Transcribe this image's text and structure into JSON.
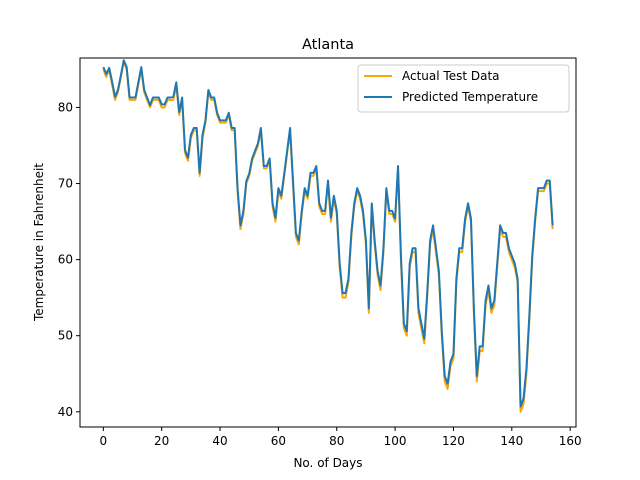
{
  "chart_data": {
    "type": "line",
    "title": "Atlanta",
    "xlabel": "No. of Days",
    "ylabel": "Temperature in Fahrenheit",
    "xlim": [
      -8,
      162
    ],
    "ylim": [
      38,
      86.5
    ],
    "xticks": [
      0,
      20,
      40,
      60,
      80,
      100,
      120,
      140,
      160
    ],
    "yticks": [
      40,
      50,
      60,
      70,
      80
    ],
    "grid": false,
    "legend": "top-right",
    "series": [
      {
        "name": "Actual Test Data",
        "color": "#ffa500",
        "values": [
          85,
          84,
          85,
          83,
          81,
          82,
          84,
          86,
          85,
          81,
          81,
          81,
          83,
          85,
          82,
          81,
          80,
          81,
          81,
          81,
          80,
          80,
          81,
          81,
          81,
          83,
          79,
          81,
          74,
          73,
          76,
          77,
          77,
          71,
          76,
          78,
          82,
          81,
          81,
          79,
          78,
          78,
          78,
          79,
          77,
          77,
          69,
          64,
          66,
          70,
          71,
          73,
          74,
          75,
          77,
          72,
          72,
          73,
          67,
          65,
          69,
          68,
          71,
          74,
          77,
          70,
          63,
          62,
          66,
          69,
          68,
          71,
          71,
          72,
          67,
          66,
          66,
          70,
          65,
          68,
          66,
          59,
          55,
          55,
          57,
          63,
          67,
          69,
          68,
          66,
          62,
          53,
          67,
          62,
          58,
          56,
          61,
          69,
          66,
          66,
          65,
          72,
          60,
          51,
          50,
          59,
          61,
          61,
          53,
          51,
          49,
          55,
          62,
          64,
          61,
          58,
          50,
          44,
          43,
          46,
          47,
          57,
          61,
          61,
          65,
          67,
          65,
          53,
          44,
          48,
          48,
          54,
          56,
          53,
          54,
          59,
          64,
          63,
          63,
          61,
          60,
          59,
          57,
          40,
          41,
          45,
          52,
          60,
          65,
          69,
          69,
          69,
          70,
          70,
          64
        ]
      },
      {
        "name": "Predicted Temperature",
        "color": "#1f77b4",
        "values": [
          85.3,
          84.4,
          85.2,
          83.4,
          81.4,
          82.3,
          84.2,
          86.2,
          85.3,
          81.3,
          81.3,
          81.3,
          83.3,
          85.3,
          82.3,
          81.3,
          80.3,
          81.3,
          81.3,
          81.3,
          80.4,
          80.4,
          81.3,
          81.3,
          81.4,
          83.3,
          79.4,
          81.3,
          74.4,
          73.4,
          76.4,
          77.3,
          77.3,
          71.4,
          76.4,
          78.3,
          82.3,
          81.3,
          81.3,
          79.3,
          78.3,
          78.3,
          78.3,
          79.3,
          77.3,
          77.3,
          69.4,
          64.5,
          66.4,
          70.3,
          71.3,
          73.3,
          74.3,
          75.3,
          77.3,
          72.3,
          72.3,
          73.3,
          67.4,
          65.5,
          69.4,
          68.4,
          71.3,
          74.3,
          77.3,
          70.4,
          63.5,
          62.5,
          66.4,
          69.4,
          68.4,
          71.4,
          71.4,
          72.3,
          67.4,
          66.4,
          66.4,
          70.4,
          65.5,
          68.4,
          66.4,
          59.5,
          55.6,
          55.6,
          57.5,
          63.5,
          67.4,
          69.4,
          68.4,
          66.4,
          62.5,
          53.6,
          67.4,
          62.5,
          58.5,
          56.6,
          61.5,
          69.4,
          66.4,
          66.4,
          65.4,
          72.3,
          60.5,
          51.6,
          50.6,
          59.5,
          61.5,
          61.5,
          53.6,
          51.6,
          49.6,
          55.6,
          62.5,
          64.5,
          61.5,
          58.5,
          50.6,
          44.7,
          43.7,
          46.6,
          47.6,
          57.5,
          61.5,
          61.5,
          65.4,
          67.4,
          65.4,
          53.6,
          44.7,
          48.6,
          48.6,
          54.6,
          56.6,
          53.6,
          54.6,
          59.5,
          64.5,
          63.5,
          63.5,
          61.5,
          60.5,
          59.5,
          57.5,
          40.7,
          41.7,
          45.6,
          52.6,
          60.5,
          65.4,
          69.4,
          69.4,
          69.4,
          70.4,
          70.4,
          64.5
        ]
      }
    ]
  }
}
